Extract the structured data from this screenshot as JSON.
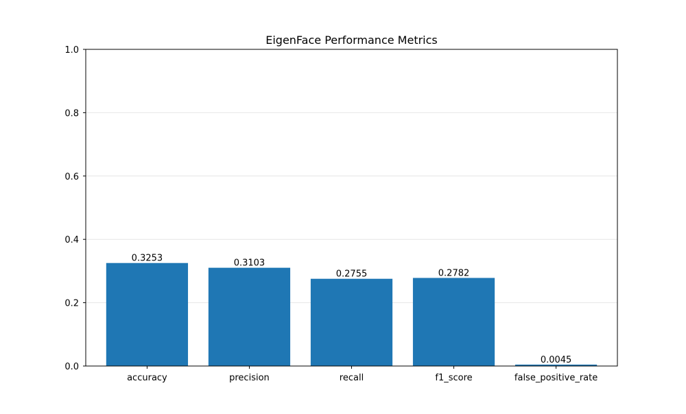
{
  "chart_data": {
    "type": "bar",
    "title": "EigenFace Performance Metrics",
    "xlabel": "",
    "ylabel": "",
    "categories": [
      "accuracy",
      "precision",
      "recall",
      "f1_score",
      "false_positive_rate"
    ],
    "values": [
      0.3253,
      0.3103,
      0.2755,
      0.2782,
      0.0045
    ],
    "value_labels": [
      "0.3253",
      "0.3103",
      "0.2755",
      "0.2782",
      "0.0045"
    ],
    "ylim": [
      0,
      1.0
    ],
    "yticks": [
      0.0,
      0.2,
      0.4,
      0.6,
      0.8,
      1.0
    ],
    "ytick_labels": [
      "0.0",
      "0.2",
      "0.4",
      "0.6",
      "0.8",
      "1.0"
    ],
    "grid": "horizontal",
    "bar_color": "#1f77b4",
    "grid_color": "#e6e6e6"
  }
}
